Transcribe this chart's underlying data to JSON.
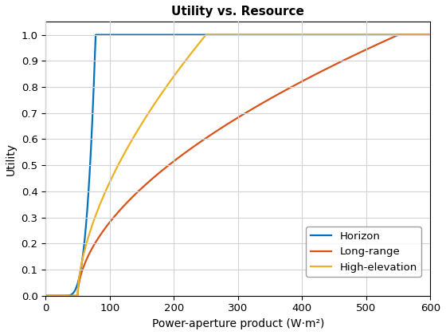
{
  "title": "Utility vs. Resource",
  "xlabel": "Power-aperture product (W·m²)",
  "ylabel": "Utility",
  "xlim": [
    0,
    600
  ],
  "ylim": [
    0,
    1.05
  ],
  "xticks": [
    0,
    100,
    200,
    300,
    400,
    500,
    600
  ],
  "yticks": [
    0.0,
    0.1,
    0.2,
    0.3,
    0.4,
    0.5,
    0.6,
    0.7,
    0.8,
    0.9,
    1.0
  ],
  "lines": [
    {
      "label": "Horizon",
      "color": "#0072BD",
      "x_start": 30,
      "x_end": 78,
      "power": 3.5
    },
    {
      "label": "Long-range",
      "color": "#D95319",
      "x_start": 50,
      "x_end": 550,
      "power": 0.55
    },
    {
      "label": "High-elevation",
      "color": "#EDB120",
      "x_start": 50,
      "x_end": 250,
      "power": 0.6
    }
  ],
  "grid_color": "#d3d3d3",
  "background_color": "#ffffff",
  "linewidth": 1.6,
  "title_fontsize": 11,
  "label_fontsize": 10,
  "tick_fontsize": 9.5
}
